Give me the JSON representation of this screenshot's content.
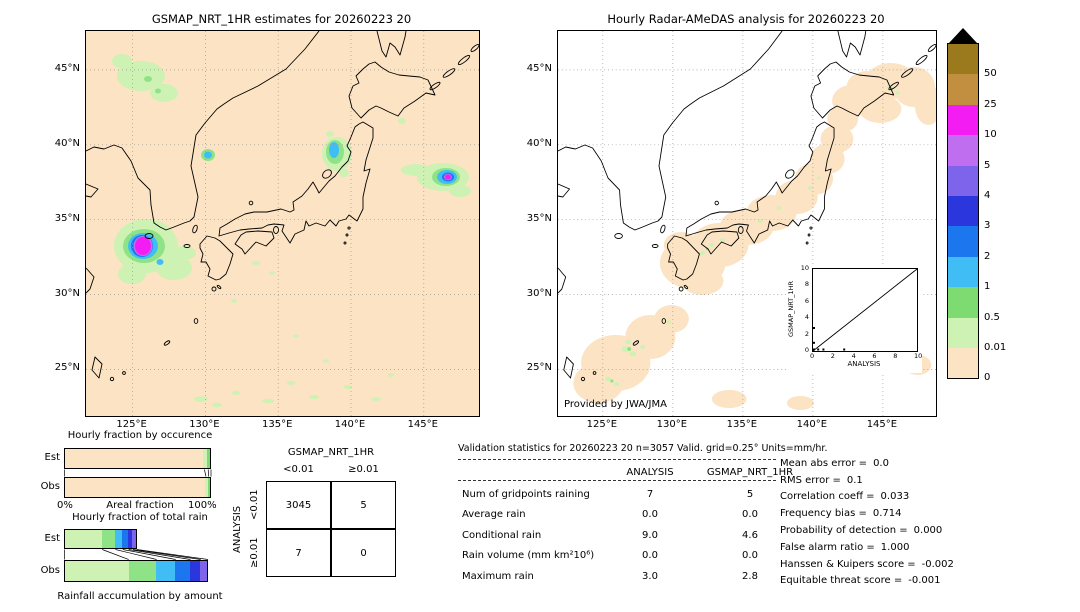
{
  "maps": {
    "left": {
      "title": "GSMAP_NRT_1HR estimates for 20260223 20"
    },
    "right": {
      "title": "Hourly Radar-AMeDAS analysis for 20260223 20",
      "credit": "Provided by JWA/JMA"
    },
    "lat_ticks": [
      "45°N",
      "40°N",
      "35°N",
      "30°N",
      "25°N"
    ],
    "lon_ticks": [
      "125°E",
      "130°E",
      "135°E",
      "140°E",
      "145°E"
    ]
  },
  "colorbar": {
    "units": "mm/hr",
    "overflow_marker": "black-triangle",
    "levels": [
      {
        "label": "50",
        "color": "#9b7a1d"
      },
      {
        "label": "25",
        "color": "#c18f3f"
      },
      {
        "label": "10",
        "color": "#f31df3"
      },
      {
        "label": "5",
        "color": "#c06ef0"
      },
      {
        "label": "4",
        "color": "#7d64ea"
      },
      {
        "label": "3",
        "color": "#2b37dd"
      },
      {
        "label": "2",
        "color": "#1c77ee"
      },
      {
        "label": "1",
        "color": "#41bdf5"
      },
      {
        "label": "0.5",
        "color": "#7ddb72"
      },
      {
        "label": "0.01",
        "color": "#cdf2b4"
      },
      {
        "label": "0",
        "color": "#fbe3c3"
      }
    ]
  },
  "inset": {
    "xlabel": "ANALYSIS",
    "ylabel": "GSMAP_NRT_1HR",
    "ticks": [
      "0",
      "2",
      "4",
      "6",
      "8",
      "10"
    ]
  },
  "fraction_panel": {
    "occurrence": {
      "title": "Hourly fraction by occurence",
      "axis_left": "0%",
      "axis_right": "100%",
      "axis_label": "Areal fraction",
      "rows": [
        {
          "label": "Est",
          "segments": [
            {
              "color": "#fbe3c3",
              "pct": 95.5
            },
            {
              "color": "#cdf2b4",
              "pct": 2.6
            },
            {
              "color": "#7ddb72",
              "pct": 1.9
            }
          ]
        },
        {
          "label": "Obs",
          "segments": [
            {
              "color": "#fbe3c3",
              "pct": 96.6
            },
            {
              "color": "#cdf2b4",
              "pct": 1.8
            },
            {
              "color": "#7ddb72",
              "pct": 1.6
            }
          ]
        }
      ]
    },
    "total_rain": {
      "title": "Hourly fraction of total rain",
      "caption": "Rainfall accumulation by amount",
      "rows": [
        {
          "label": "Est",
          "segments": [
            {
              "color": "#cdf2b4",
              "pct": 26
            },
            {
              "color": "#8fe387",
              "pct": 9
            },
            {
              "color": "#41bdf5",
              "pct": 5
            },
            {
              "color": "#1c77ee",
              "pct": 4
            },
            {
              "color": "#2b37dd",
              "pct": 3
            },
            {
              "color": "#7d64ea",
              "pct": 2.5
            }
          ]
        },
        {
          "label": "Obs",
          "segments": [
            {
              "color": "#cdf2b4",
              "pct": 44
            },
            {
              "color": "#8fe387",
              "pct": 19
            },
            {
              "color": "#41bdf5",
              "pct": 13
            },
            {
              "color": "#1c77ee",
              "pct": 10
            },
            {
              "color": "#2b37dd",
              "pct": 7
            },
            {
              "color": "#7d64ea",
              "pct": 5
            }
          ]
        }
      ]
    }
  },
  "contingency": {
    "col_header": "GSMAP_NRT_1HR",
    "row_header": "ANALYSIS",
    "col_labels": [
      "<0.01",
      "≥0.01"
    ],
    "row_labels": [
      "<0.01",
      "≥0.01"
    ],
    "values": [
      [
        "3045",
        "5"
      ],
      [
        "7",
        "0"
      ]
    ]
  },
  "validation": {
    "title": "Validation statistics for 20260223 20  n=3057 Valid. grid=0.25° Units=mm/hr.",
    "columns": [
      "ANALYSIS",
      "GSMAP_NRT_1HR"
    ],
    "rows": [
      {
        "label": "Num of gridpoints raining",
        "values": [
          "7",
          "5"
        ]
      },
      {
        "label": "Average rain",
        "values": [
          "0.0",
          "0.0"
        ]
      },
      {
        "label": "Conditional rain",
        "values": [
          "9.0",
          "4.6"
        ]
      },
      {
        "label": "Rain volume (mm km²10⁶)",
        "values": [
          "0.0",
          "0.0"
        ]
      },
      {
        "label": "Maximum rain",
        "values": [
          "3.0",
          "2.8"
        ]
      }
    ],
    "metrics": [
      {
        "label": "Mean abs error =",
        "value": "0.0"
      },
      {
        "label": "RMS error =",
        "value": "0.1"
      },
      {
        "label": "Correlation coeff =",
        "value": "0.033"
      },
      {
        "label": "Frequency bias =",
        "value": "0.714"
      },
      {
        "label": "Probability of detection =",
        "value": "0.000"
      },
      {
        "label": "False alarm ratio =",
        "value": "1.000"
      },
      {
        "label": "Hanssen & Kuipers score =",
        "value": "-0.002"
      },
      {
        "label": "Equitable threat score =",
        "value": "-0.001"
      }
    ]
  },
  "chart_data": [
    {
      "type": "heatmap",
      "title": "GSMAP_NRT_1HR estimates for 20260223 20",
      "units": "mm/hr",
      "x_ticks": [
        "125°E",
        "130°E",
        "135°E",
        "140°E",
        "145°E"
      ],
      "y_ticks": [
        "25°N",
        "30°N",
        "35°N",
        "40°N",
        "45°N"
      ],
      "features": [
        {
          "lon": 126.1,
          "lat": 33.2,
          "peak_mm_hr": "10-25",
          "desc": "intense rain cell southwest of Korea: magenta core with purple/blue/cyan/green shield"
        },
        {
          "lon": 147.0,
          "lat": 38.0,
          "peak_mm_hr": "10-25",
          "desc": "compact intense cell east of Honshu with cyan/green ring"
        },
        {
          "lon": 139.2,
          "lat": 39.5,
          "peak_mm_hr": "1-2",
          "desc": "cyan band along northwest Honshu coast"
        },
        {
          "lon": 130.2,
          "lat": 39.3,
          "peak_mm_hr": "1-2",
          "desc": "small cyan spot off northeast Korea"
        },
        {
          "lon": 125.5,
          "lat": 44.5,
          "peak_mm_hr": "0.5-1",
          "desc": "light rain area over northeast China"
        },
        {
          "lon": 133.0,
          "lat": 23.5,
          "peak_mm_hr": "<0.5",
          "desc": "scattered light rain streaks in far south of domain"
        }
      ]
    },
    {
      "type": "heatmap",
      "title": "Hourly Radar-AMeDAS analysis for 20260223 20",
      "units": "mm/hr",
      "features": [
        {
          "desc": "pale (0-0.01 mm/hr) radar coverage band sweeping SW-NE from Okinawa over Kyushu, Honshu to east of Hokkaido"
        },
        {
          "lon": 126.9,
          "lat": 26.2,
          "peak_mm_hr": "0.5",
          "desc": "light rain specks near Okinawa"
        },
        {
          "lon": 125.0,
          "lat": 24.3,
          "peak_mm_hr": "0.5",
          "desc": "light rain specks near Miyako"
        },
        {
          "lon": 131.8,
          "lat": 33.6,
          "peak_mm_hr": "<0.5",
          "desc": "light specks over Kyushu / Seto area"
        },
        {
          "lon": 140.0,
          "lat": 36.0,
          "peak_mm_hr": "<0.5",
          "desc": "light specks over Kanto / Tohoku"
        },
        {
          "lon": 145.5,
          "lat": 43.5,
          "peak_mm_hr": "<0.5",
          "desc": "light specks east of Hokkaido"
        }
      ]
    },
    {
      "type": "scatter",
      "xlabel": "ANALYSIS",
      "ylabel": "GSMAP_NRT_1HR",
      "xlim": [
        0,
        10
      ],
      "ylim": [
        0,
        10
      ],
      "ref_line": "y=x",
      "points": [
        [
          0,
          0
        ],
        [
          0.5,
          0
        ],
        [
          1,
          0
        ],
        [
          3,
          0
        ],
        [
          0,
          1
        ],
        [
          0,
          2.8
        ]
      ],
      "note": "points cluster near the origin along both axes (no overlap between raining points)"
    },
    {
      "type": "bar",
      "title": "Hourly fraction by occurence",
      "orientation": "horizontal-stacked",
      "categories": [
        "Est",
        "Obs"
      ],
      "xlabel": "Areal fraction",
      "xlim": [
        "0%",
        "100%"
      ],
      "series": [
        {
          "name": "no rain (0)",
          "values": [
            95.5,
            96.6
          ]
        },
        {
          "name": "0.01-0.5 mm/hr",
          "values": [
            2.6,
            1.8
          ]
        },
        {
          "name": "0.5-1 mm/hr",
          "values": [
            1.9,
            1.6
          ]
        }
      ]
    },
    {
      "type": "bar",
      "title": "Hourly fraction of total rain",
      "orientation": "horizontal-stacked",
      "categories": [
        "Est",
        "Obs"
      ],
      "caption": "Rainfall accumulation by amount",
      "series": [
        {
          "name": "0.01-0.5",
          "values": [
            26,
            44
          ]
        },
        {
          "name": "0.5-1",
          "values": [
            9,
            19
          ]
        },
        {
          "name": "1-2",
          "values": [
            5,
            13
          ]
        },
        {
          "name": "2-3",
          "values": [
            4,
            10
          ]
        },
        {
          "name": "3-4",
          "values": [
            3,
            7
          ]
        },
        {
          "name": ">4",
          "values": [
            2.5,
            5
          ]
        }
      ]
    },
    {
      "type": "table",
      "title": "Contingency table (GSMAP_NRT_1HR vs ANALYSIS, threshold 0.01)",
      "columns": [
        "GSMAP<0.01",
        "GSMAP≥0.01"
      ],
      "rows": [
        "ANALYSIS<0.01",
        "ANALYSIS≥0.01"
      ],
      "values": [
        [
          3045,
          5
        ],
        [
          7,
          0
        ]
      ]
    },
    {
      "type": "table",
      "title": "Validation statistics for 20260223 20 (n=3057, grid=0.25°, units=mm/hr)",
      "columns": [
        "ANALYSIS",
        "GSMAP_NRT_1HR"
      ],
      "rows": [
        "Num of gridpoints raining",
        "Average rain",
        "Conditional rain",
        "Rain volume (mm km²10⁶)",
        "Maximum rain"
      ],
      "values": [
        [
          7,
          5
        ],
        [
          0.0,
          0.0
        ],
        [
          9.0,
          4.6
        ],
        [
          0.0,
          0.0
        ],
        [
          3.0,
          2.8
        ]
      ],
      "scores": {
        "Mean abs error": 0.0,
        "RMS error": 0.1,
        "Correlation coeff": 0.033,
        "Frequency bias": 0.714,
        "Probability of detection": 0.0,
        "False alarm ratio": 1.0,
        "Hanssen & Kuipers score": -0.002,
        "Equitable threat score": -0.001
      }
    }
  ]
}
